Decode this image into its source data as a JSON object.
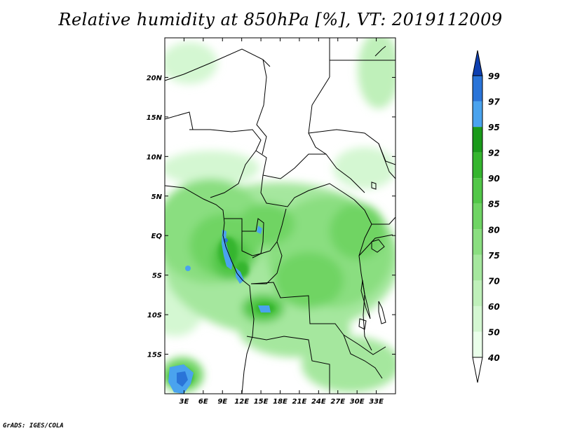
{
  "title": "Relative humidity at 850hPa [%], VT: 2019112009",
  "credit": "GrADS: IGES/COLA",
  "map": {
    "region": "Central Africa",
    "lon_range": [
      0,
      36
    ],
    "lat_range": [
      -20,
      25
    ],
    "lat_ticks": [
      {
        "label": "20N",
        "value": 20
      },
      {
        "label": "15N",
        "value": 15
      },
      {
        "label": "10N",
        "value": 10
      },
      {
        "label": "5N",
        "value": 5
      },
      {
        "label": "EQ",
        "value": 0
      },
      {
        "label": "5S",
        "value": -5
      },
      {
        "label": "10S",
        "value": -10
      },
      {
        "label": "15S",
        "value": -15
      }
    ],
    "lon_ticks": [
      {
        "label": "3E",
        "value": 3
      },
      {
        "label": "6E",
        "value": 6
      },
      {
        "label": "9E",
        "value": 9
      },
      {
        "label": "12E",
        "value": 12
      },
      {
        "label": "15E",
        "value": 15
      },
      {
        "label": "18E",
        "value": 18
      },
      {
        "label": "21E",
        "value": 21
      },
      {
        "label": "24E",
        "value": 24
      },
      {
        "label": "27E",
        "value": 27
      },
      {
        "label": "30E",
        "value": 30
      },
      {
        "label": "33E",
        "value": 33
      }
    ]
  },
  "colorbar": {
    "levels": [
      "40",
      "50",
      "60",
      "70",
      "75",
      "80",
      "85",
      "90",
      "92",
      "95",
      "97",
      "99"
    ],
    "colors": [
      "#eaffea",
      "#d4f7d2",
      "#bff0ba",
      "#a5e79e",
      "#8ade80",
      "#6fd464",
      "#52c748",
      "#35b52e",
      "#1a9a1a",
      "#4aa3ee",
      "#2a74d8",
      "#0e3fb0"
    ]
  }
}
